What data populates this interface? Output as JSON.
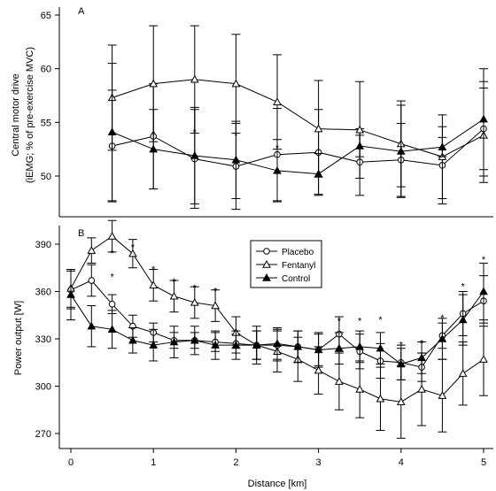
{
  "chart_data": [
    {
      "panel": "A",
      "type": "line",
      "ylabel": "Central motor drive",
      "ylabel2": "(iEMG; % of pre-exercise MVC)",
      "ylim": [
        46,
        66
      ],
      "yticks": [
        "50",
        "55",
        "60",
        "65"
      ],
      "x": [
        0.5,
        1,
        1.5,
        2,
        2.5,
        3,
        3.5,
        4,
        4.5,
        5
      ],
      "series": [
        {
          "name": "Placebo",
          "marker": "circle-open",
          "values": [
            52.8,
            53.7,
            51.6,
            50.9,
            52.0,
            52.2,
            51.3,
            51.5,
            51.0,
            54.4
          ],
          "err": [
            5.2,
            4.9,
            4.6,
            4.0,
            4.3,
            4.0,
            3.1,
            3.4,
            3.6,
            4.4
          ]
        },
        {
          "name": "Fentanyl",
          "marker": "triangle-open",
          "values": [
            57.3,
            58.6,
            59.0,
            58.6,
            56.9,
            54.4,
            54.3,
            53.0,
            51.8,
            53.8
          ],
          "err": [
            4.9,
            5.4,
            5.0,
            4.6,
            4.4,
            4.5,
            4.5,
            4.0,
            3.9,
            4.4
          ]
        },
        {
          "name": "Control",
          "marker": "triangle-filled",
          "values": [
            54.1,
            52.5,
            51.9,
            51.5,
            50.5,
            50.2,
            52.8,
            52.3,
            52.7,
            55.3
          ],
          "err": [
            6.4,
            3.7,
            4.5,
            3.6,
            2.9,
            1.9,
            1.0,
            4.3,
            0.9,
            4.7
          ]
        }
      ],
      "annotations": [
        {
          "text": "*",
          "x": 1,
          "y": 54.0
        },
        {
          "text": "*",
          "x": 1.5,
          "y": 54.2
        },
        {
          "text": "*",
          "x": 2,
          "y": 53.9
        },
        {
          "text": "*",
          "x": 2.5,
          "y": 52.7
        }
      ]
    },
    {
      "panel": "B",
      "type": "line",
      "xlabel": "Distance [km]",
      "ylabel": "Power output [W]",
      "ylim": [
        255,
        400
      ],
      "xlim": [
        -0.1,
        5.1
      ],
      "yticks": [
        "270",
        "300",
        "330",
        "360",
        "390"
      ],
      "xticks": [
        "0",
        "1",
        "2",
        "3",
        "4",
        "5"
      ],
      "x": [
        0,
        0.25,
        0.5,
        0.75,
        1,
        1.25,
        1.5,
        1.75,
        2,
        2.25,
        2.5,
        2.75,
        3,
        3.25,
        3.5,
        3.75,
        4,
        4.25,
        4.5,
        4.75,
        5
      ],
      "series": [
        {
          "name": "Placebo",
          "marker": "circle-open",
          "values": [
            361,
            367,
            352,
            338,
            334,
            329,
            329,
            328,
            327,
            326,
            326,
            325,
            323,
            333,
            322,
            316,
            315,
            312,
            332,
            346,
            354
          ],
          "err": [
            12,
            10,
            6,
            7,
            6,
            5,
            5,
            6,
            6,
            9,
            10,
            10,
            11,
            11,
            11,
            11,
            11,
            9,
            8,
            14,
            16
          ]
        },
        {
          "name": "Fentanyl",
          "marker": "triangle-open",
          "values": [
            362,
            386,
            395,
            384,
            364,
            357,
            353,
            351,
            334,
            326,
            322,
            317,
            310,
            303,
            298,
            292,
            290,
            298,
            294,
            308,
            317
          ],
          "err": [
            12,
            8,
            10,
            9,
            10,
            10,
            10,
            10,
            10,
            12,
            13,
            14,
            15,
            18,
            18,
            20,
            23,
            23,
            23,
            20,
            23
          ]
        },
        {
          "name": "Control",
          "marker": "triangle-filled",
          "values": [
            358,
            338,
            336,
            329,
            326,
            328,
            329,
            326,
            326,
            326,
            327,
            325,
            323,
            324,
            325,
            324,
            314,
            318,
            330,
            342,
            360
          ],
          "err": [
            16,
            13,
            12,
            8,
            10,
            10,
            9,
            9,
            9,
            9,
            10,
            10,
            10,
            10,
            10,
            10,
            10,
            10,
            13,
            16,
            18
          ]
        }
      ],
      "annotations": [
        {
          "text": "*",
          "x": 0.5,
          "y": 385
        },
        {
          "text": "*",
          "x": 0.5,
          "y": 370
        },
        {
          "text": "*",
          "x": 0.75,
          "y": 389
        },
        {
          "text": "*",
          "x": 1,
          "y": 375
        },
        {
          "text": "*",
          "x": 1.25,
          "y": 367
        },
        {
          "text": "*",
          "x": 1.5,
          "y": 363
        },
        {
          "text": "*",
          "x": 1.75,
          "y": 361
        },
        {
          "text": "*",
          "x": 3.25,
          "y": 342
        },
        {
          "text": "*",
          "x": 3.5,
          "y": 342
        },
        {
          "text": "*",
          "x": 3.75,
          "y": 343
        },
        {
          "text": "*",
          "x": 4,
          "y": 327
        },
        {
          "text": "*",
          "x": 4.25,
          "y": 328
        },
        {
          "text": "*",
          "x": 4.5,
          "y": 344
        },
        {
          "text": "*",
          "x": 4.75,
          "y": 364
        },
        {
          "text": "*",
          "x": 5,
          "y": 381
        }
      ],
      "legend": {
        "position": "top-center",
        "entries": [
          "Placebo",
          "Fentanyl",
          "Control"
        ]
      }
    }
  ]
}
